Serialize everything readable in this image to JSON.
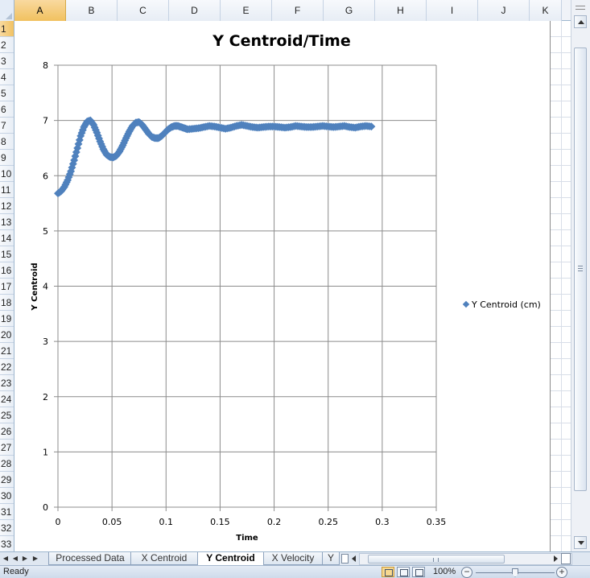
{
  "columns": [
    "A",
    "B",
    "C",
    "D",
    "E",
    "F",
    "G",
    "H",
    "I",
    "J",
    "K"
  ],
  "active_column": "A",
  "rows": [
    "1",
    "2",
    "3",
    "4",
    "5",
    "6",
    "7",
    "8",
    "9",
    "10",
    "11",
    "12",
    "13",
    "14",
    "15",
    "16",
    "17",
    "18",
    "19",
    "20",
    "21",
    "22",
    "23",
    "24",
    "25",
    "26",
    "27",
    "28",
    "29",
    "30",
    "31",
    "32",
    "33"
  ],
  "active_row": "1",
  "chart_data": {
    "type": "scatter",
    "title": "Y Centroid/Time",
    "xlabel": "Time",
    "ylabel": "Y Centroid",
    "xlim": [
      0,
      0.35
    ],
    "ylim": [
      0,
      8
    ],
    "x_ticks": [
      "0",
      "0.05",
      "0.1",
      "0.15",
      "0.2",
      "0.25",
      "0.3",
      "0.35"
    ],
    "y_ticks": [
      "0",
      "1",
      "2",
      "3",
      "4",
      "5",
      "6",
      "7",
      "8"
    ],
    "grid": true,
    "legend_position": "right",
    "marker": "diamond",
    "series": [
      {
        "name": "Y Centroid (cm)",
        "color": "#4f81bd",
        "x": [
          0,
          0.003,
          0.006,
          0.009,
          0.012,
          0.015,
          0.018,
          0.021,
          0.024,
          0.027,
          0.03,
          0.033,
          0.036,
          0.039,
          0.042,
          0.045,
          0.048,
          0.051,
          0.054,
          0.057,
          0.06,
          0.063,
          0.066,
          0.069,
          0.072,
          0.075,
          0.078,
          0.081,
          0.084,
          0.087,
          0.09,
          0.093,
          0.096,
          0.099,
          0.102,
          0.105,
          0.108,
          0.111,
          0.114,
          0.117,
          0.12,
          0.125,
          0.13,
          0.135,
          0.14,
          0.145,
          0.15,
          0.155,
          0.16,
          0.165,
          0.17,
          0.175,
          0.18,
          0.185,
          0.19,
          0.195,
          0.2,
          0.205,
          0.21,
          0.215,
          0.22,
          0.225,
          0.23,
          0.235,
          0.24,
          0.245,
          0.25,
          0.255,
          0.26,
          0.265,
          0.27,
          0.275,
          0.28,
          0.285,
          0.29
        ],
        "y": [
          5.68,
          5.72,
          5.8,
          5.92,
          6.08,
          6.28,
          6.5,
          6.72,
          6.88,
          6.98,
          7.0,
          6.92,
          6.78,
          6.62,
          6.48,
          6.38,
          6.34,
          6.33,
          6.36,
          6.44,
          6.55,
          6.68,
          6.8,
          6.9,
          6.96,
          6.97,
          6.92,
          6.84,
          6.76,
          6.7,
          6.68,
          6.68,
          6.72,
          6.78,
          6.84,
          6.88,
          6.9,
          6.9,
          6.88,
          6.86,
          6.84,
          6.85,
          6.86,
          6.88,
          6.9,
          6.89,
          6.87,
          6.85,
          6.87,
          6.9,
          6.92,
          6.9,
          6.88,
          6.87,
          6.88,
          6.89,
          6.89,
          6.88,
          6.87,
          6.88,
          6.9,
          6.89,
          6.88,
          6.88,
          6.89,
          6.9,
          6.89,
          6.88,
          6.89,
          6.9,
          6.88,
          6.87,
          6.89,
          6.9,
          6.89
        ]
      }
    ]
  },
  "sheet_tabs": [
    {
      "label": "Processed Data",
      "active": false
    },
    {
      "label": "X Centroid",
      "active": false
    },
    {
      "label": "Y Centroid",
      "active": true
    },
    {
      "label": "X Velocity",
      "active": false
    },
    {
      "label": "Y",
      "active": false
    }
  ],
  "status": {
    "text": "Ready",
    "zoom_level": "100%",
    "zoom_out_label": "−",
    "zoom_in_label": "+"
  }
}
